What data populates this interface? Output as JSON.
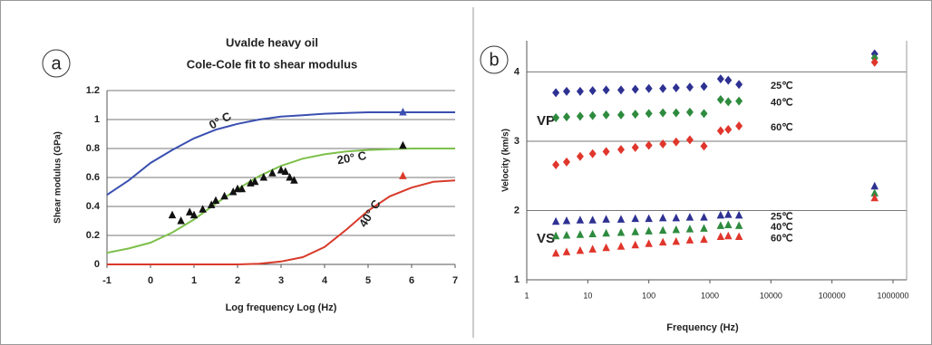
{
  "chart_data": [
    {
      "type": "line",
      "panel": "a",
      "title": "Uvalde heavy oil",
      "subtitle": "Cole-Cole fit to shear modulus",
      "x_label": "Log frequency Log (Hz)",
      "y_label": "Shear modulus (GPa)",
      "xlim": [
        -1,
        7
      ],
      "xticks": [
        -1,
        0,
        1,
        2,
        3,
        4,
        5,
        6,
        7
      ],
      "ylim": [
        0,
        1.2
      ],
      "yticks": [
        0,
        0.2,
        0.4,
        0.6,
        0.8,
        1,
        1.2
      ],
      "grid": true,
      "series": [
        {
          "name": "0° C",
          "color": "#3a4fb0",
          "x": [
            -1,
            -0.5,
            0,
            0.5,
            1,
            1.5,
            2,
            2.5,
            3,
            3.5,
            4,
            4.5,
            5,
            5.5,
            6,
            6.5,
            7
          ],
          "values": [
            0.48,
            0.58,
            0.7,
            0.79,
            0.87,
            0.93,
            0.97,
            1.0,
            1.02,
            1.03,
            1.04,
            1.045,
            1.05,
            1.05,
            1.05,
            1.05,
            1.05
          ]
        },
        {
          "name": "20° C",
          "color": "#7dc04a",
          "x": [
            -1,
            -0.5,
            0,
            0.5,
            1,
            1.5,
            2,
            2.5,
            3,
            3.5,
            4,
            4.5,
            5,
            5.5,
            6,
            6.5,
            7
          ],
          "values": [
            0.08,
            0.11,
            0.15,
            0.22,
            0.31,
            0.42,
            0.52,
            0.61,
            0.68,
            0.73,
            0.76,
            0.78,
            0.79,
            0.795,
            0.8,
            0.8,
            0.8
          ]
        },
        {
          "name": "40° C",
          "color": "#d93a2a",
          "x": [
            -1,
            -0.5,
            0,
            0.5,
            1,
            1.5,
            2,
            2.5,
            3,
            3.5,
            4,
            4.5,
            5,
            5.5,
            6,
            6.5,
            7
          ],
          "values": [
            0,
            0,
            0,
            0,
            0,
            0,
            0,
            0.005,
            0.02,
            0.05,
            0.12,
            0.24,
            0.37,
            0.47,
            0.53,
            0.57,
            0.58
          ]
        },
        {
          "color": "#111111",
          "marker": "triangle",
          "x": [
            0.5,
            0.7,
            0.9,
            1.0,
            1.2,
            1.4,
            1.5,
            1.7,
            1.9,
            2.0,
            2.1,
            2.3,
            2.4,
            2.6,
            2.8,
            3.0,
            3.1,
            3.2,
            3.3,
            5.8
          ],
          "values": [
            0.34,
            0.3,
            0.36,
            0.34,
            0.38,
            0.41,
            0.44,
            0.47,
            0.5,
            0.52,
            0.52,
            0.56,
            0.57,
            0.6,
            0.63,
            0.65,
            0.64,
            0.6,
            0.58,
            0.82
          ]
        },
        {
          "color": "#3a4fb0",
          "marker": "triangle",
          "x": [
            5.8
          ],
          "values": [
            1.05
          ]
        },
        {
          "color": "#d93a2a",
          "marker": "triangle",
          "x": [
            5.8
          ],
          "values": [
            0.61
          ]
        }
      ]
    },
    {
      "type": "scatter",
      "panel": "b",
      "x_label": "Frequency  (Hz)",
      "y_label": "Velocity  (km/s)",
      "xscale": "log",
      "xlim": [
        1,
        1000000
      ],
      "xticks": [
        1,
        10,
        100,
        1000,
        10000,
        100000,
        1000000
      ],
      "ylim": [
        1,
        4.45
      ],
      "yticks": [
        1,
        2,
        3,
        4
      ],
      "grid": true,
      "annotations": [
        "VP",
        "VS"
      ],
      "series": [
        {
          "name": "25℃",
          "color": "#2e3192",
          "marker": "diamond",
          "x": [
            3,
            4.5,
            7.5,
            12,
            20,
            35,
            60,
            100,
            170,
            280,
            470,
            800,
            1500,
            2000,
            3000,
            500000
          ],
          "values": [
            3.7,
            3.72,
            3.72,
            3.73,
            3.74,
            3.74,
            3.75,
            3.76,
            3.76,
            3.77,
            3.78,
            3.79,
            3.9,
            3.88,
            3.82,
            4.26
          ]
        },
        {
          "name": "40℃",
          "color": "#2e8b3e",
          "marker": "diamond",
          "x": [
            3,
            4.5,
            7.5,
            12,
            20,
            35,
            60,
            100,
            170,
            280,
            470,
            800,
            1500,
            2000,
            3000,
            500000
          ],
          "values": [
            3.34,
            3.35,
            3.36,
            3.37,
            3.38,
            3.38,
            3.39,
            3.4,
            3.41,
            3.41,
            3.42,
            3.4,
            3.6,
            3.57,
            3.58,
            4.2
          ]
        },
        {
          "name": "60℃",
          "color": "#e0362c",
          "marker": "diamond",
          "x": [
            3,
            4.5,
            7.5,
            12,
            20,
            35,
            60,
            100,
            170,
            280,
            470,
            800,
            1500,
            2000,
            3000,
            500000
          ],
          "values": [
            2.66,
            2.7,
            2.78,
            2.82,
            2.85,
            2.88,
            2.91,
            2.94,
            2.96,
            2.99,
            3.02,
            2.93,
            3.15,
            3.17,
            3.22,
            4.14
          ]
        },
        {
          "name": "25℃",
          "color": "#2e3192",
          "marker": "triangle",
          "x": [
            3,
            4.5,
            7.5,
            12,
            20,
            35,
            60,
            100,
            170,
            280,
            470,
            800,
            1500,
            2000,
            3000,
            500000
          ],
          "values": [
            1.84,
            1.85,
            1.86,
            1.86,
            1.87,
            1.87,
            1.88,
            1.88,
            1.89,
            1.89,
            1.9,
            1.9,
            1.93,
            1.94,
            1.93,
            2.35
          ]
        },
        {
          "name": "40℃",
          "color": "#2e8b3e",
          "marker": "triangle",
          "x": [
            3,
            4.5,
            7.5,
            12,
            20,
            35,
            60,
            100,
            170,
            280,
            470,
            800,
            1500,
            2000,
            3000,
            500000
          ],
          "values": [
            1.63,
            1.64,
            1.65,
            1.66,
            1.67,
            1.68,
            1.69,
            1.7,
            1.71,
            1.72,
            1.73,
            1.74,
            1.78,
            1.79,
            1.78,
            2.25
          ]
        },
        {
          "name": "60℃",
          "color": "#e0362c",
          "marker": "triangle",
          "x": [
            3,
            4.5,
            7.5,
            12,
            20,
            35,
            60,
            100,
            170,
            280,
            470,
            800,
            1500,
            2000,
            3000,
            500000
          ],
          "values": [
            1.38,
            1.4,
            1.42,
            1.44,
            1.46,
            1.48,
            1.5,
            1.52,
            1.54,
            1.55,
            1.57,
            1.58,
            1.62,
            1.63,
            1.62,
            2.18
          ]
        }
      ]
    }
  ]
}
